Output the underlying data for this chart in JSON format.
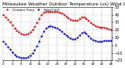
{
  "title": "Milwaukee Weather Outdoor Temperature (vs) Wind Chill (Last 24 Hours)",
  "title_fontsize": 4.2,
  "background_color": "#ffffff",
  "plot_bg_color": "#ffffff",
  "grid_color": "#888888",
  "temp_color": "#dd0000",
  "windchill_color": "#0000cc",
  "legend_temp": "Outdoor Temp",
  "legend_wc": "Wind Chill",
  "ylim": [
    -20,
    50
  ],
  "yticks": [
    -20,
    -10,
    0,
    10,
    20,
    30,
    40,
    50
  ],
  "ytick_fontsize": 3.5,
  "xtick_fontsize": 2.8,
  "num_points": 49,
  "temp_data": [
    40,
    37,
    34,
    30,
    26,
    22,
    19,
    17,
    15,
    14,
    14,
    15,
    17,
    20,
    24,
    29,
    35,
    40,
    43,
    44,
    44,
    44,
    44,
    44,
    44,
    43,
    42,
    40,
    38,
    36,
    34,
    33,
    32,
    33,
    35,
    37,
    37,
    35,
    32,
    29,
    27,
    25,
    24,
    23,
    23,
    23,
    22,
    21,
    20
  ],
  "windchill_data": [
    5,
    2,
    -2,
    -5,
    -9,
    -12,
    -14,
    -15,
    -16,
    -16,
    -16,
    -15,
    -13,
    -10,
    -6,
    -1,
    5,
    12,
    18,
    22,
    24,
    25,
    24,
    23,
    22,
    20,
    18,
    15,
    13,
    11,
    9,
    8,
    8,
    10,
    13,
    16,
    17,
    15,
    12,
    9,
    7,
    6,
    5,
    5,
    5,
    6,
    6,
    6,
    6
  ],
  "vgrid_positions": [
    0,
    4,
    8,
    12,
    16,
    20,
    24,
    28,
    32,
    36,
    40,
    44,
    48
  ],
  "xtick_step": 4
}
